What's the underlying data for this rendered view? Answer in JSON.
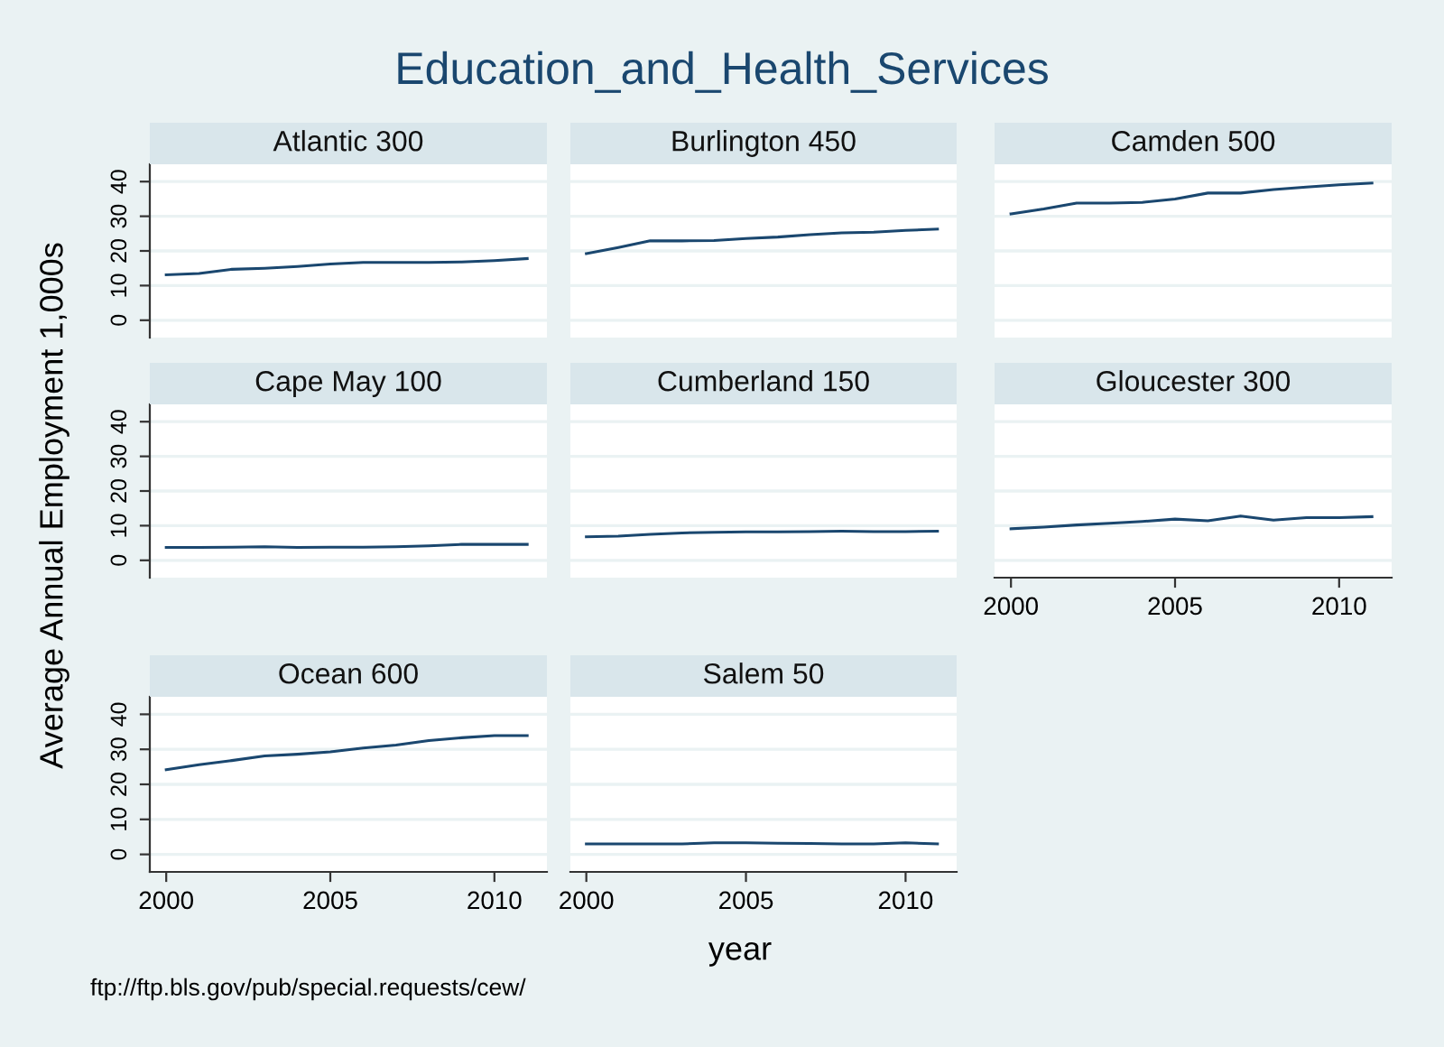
{
  "chart_data": [
    {
      "type": "line",
      "title": "Education_and_Health_Services",
      "ylabel": "Average Annual Employment 1,000s",
      "xlabel": "year",
      "annotations": [
        "ftp://ftp.bls.gov/pub/special.requests/cew/"
      ],
      "subtitle": "Atlantic 300",
      "x": [
        2000,
        2001,
        2002,
        2003,
        2004,
        2005,
        2006,
        2007,
        2008,
        2009,
        2010,
        2011
      ],
      "values": [
        13.1,
        13.5,
        14.7,
        15,
        15.5,
        16.2,
        16.7,
        16.7,
        16.7,
        16.8,
        17.2,
        17.8
      ],
      "color": "#1a476f",
      "xlim": [
        1999.5,
        2011.6
      ],
      "ylim": [
        -5,
        45
      ],
      "xticks": [
        2000,
        2005,
        2010
      ],
      "yticks": [
        0,
        10,
        20,
        30,
        40
      ],
      "grid": "y",
      "tick_labels": "y"
    },
    {
      "type": "line",
      "subtitle": "Burlington 450",
      "x": [
        2000,
        2001,
        2002,
        2003,
        2004,
        2005,
        2006,
        2007,
        2008,
        2009,
        2010,
        2011
      ],
      "values": [
        19.2,
        21,
        22.9,
        22.9,
        23,
        23.6,
        24,
        24.7,
        25.2,
        25.4,
        25.9,
        26.3
      ],
      "color": "#1a476f",
      "xlim": [
        1999.5,
        2011.6
      ],
      "ylim": [
        -5,
        45
      ],
      "xticks": [
        2000,
        2005,
        2010
      ],
      "yticks": [
        0,
        10,
        20,
        30,
        40
      ],
      "grid": "y",
      "tick_labels": false
    },
    {
      "type": "line",
      "subtitle": "Camden 500",
      "x": [
        2000,
        2001,
        2002,
        2003,
        2004,
        2005,
        2006,
        2007,
        2008,
        2009,
        2010,
        2011
      ],
      "values": [
        30.7,
        32.1,
        33.8,
        33.8,
        34,
        35,
        36.7,
        36.7,
        37.7,
        38.4,
        39.1,
        39.6
      ],
      "color": "#1a476f",
      "xlim": [
        1999.5,
        2011.6
      ],
      "ylim": [
        -5,
        45
      ],
      "xticks": [
        2000,
        2005,
        2010
      ],
      "yticks": [
        0,
        10,
        20,
        30,
        40
      ],
      "grid": "y",
      "tick_labels": false
    },
    {
      "type": "line",
      "subtitle": "Cape May 100",
      "x": [
        2000,
        2001,
        2002,
        2003,
        2004,
        2005,
        2006,
        2007,
        2008,
        2009,
        2010,
        2011
      ],
      "values": [
        3.7,
        3.7,
        3.8,
        3.9,
        3.7,
        3.8,
        3.8,
        3.9,
        4.2,
        4.6,
        4.6,
        4.6
      ],
      "color": "#1a476f",
      "xlim": [
        1999.5,
        2011.6
      ],
      "ylim": [
        -5,
        45
      ],
      "xticks": [
        2000,
        2005,
        2010
      ],
      "yticks": [
        0,
        10,
        20,
        30,
        40
      ],
      "grid": "y",
      "tick_labels": "y"
    },
    {
      "type": "line",
      "subtitle": "Cumberland 150",
      "x": [
        2000,
        2001,
        2002,
        2003,
        2004,
        2005,
        2006,
        2007,
        2008,
        2009,
        2010,
        2011
      ],
      "values": [
        6.8,
        7,
        7.5,
        7.9,
        8.1,
        8.2,
        8.2,
        8.3,
        8.4,
        8.3,
        8.3,
        8.4
      ],
      "color": "#1a476f",
      "xlim": [
        1999.5,
        2011.6
      ],
      "ylim": [
        -5,
        45
      ],
      "xticks": [
        2000,
        2005,
        2010
      ],
      "yticks": [
        0,
        10,
        20,
        30,
        40
      ],
      "grid": "y",
      "tick_labels": false
    },
    {
      "type": "line",
      "subtitle": "Gloucester 300",
      "x": [
        2000,
        2001,
        2002,
        2003,
        2004,
        2005,
        2006,
        2007,
        2008,
        2009,
        2010,
        2011
      ],
      "values": [
        9.1,
        9.6,
        10.2,
        10.7,
        11.2,
        11.9,
        11.4,
        12.8,
        11.6,
        12.3,
        12.3,
        12.6
      ],
      "color": "#1a476f",
      "xlim": [
        1999.5,
        2011.6
      ],
      "ylim": [
        -5,
        45
      ],
      "xticks": [
        2000,
        2005,
        2010
      ],
      "yticks": [
        0,
        10,
        20,
        30,
        40
      ],
      "grid": "y",
      "tick_labels": "x"
    },
    {
      "type": "line",
      "subtitle": "Ocean 600",
      "x": [
        2000,
        2001,
        2002,
        2003,
        2004,
        2005,
        2006,
        2007,
        2008,
        2009,
        2010,
        2011
      ],
      "values": [
        24.2,
        25.6,
        26.8,
        28.1,
        28.6,
        29.3,
        30.4,
        31.2,
        32.5,
        33.3,
        33.9,
        33.9
      ],
      "color": "#1a476f",
      "xlim": [
        1999.5,
        2011.6
      ],
      "ylim": [
        -5,
        45
      ],
      "xticks": [
        2000,
        2005,
        2010
      ],
      "yticks": [
        0,
        10,
        20,
        30,
        40
      ],
      "grid": "y"
    },
    {
      "type": "line",
      "subtitle": "Salem 50",
      "x": [
        2000,
        2001,
        2002,
        2003,
        2004,
        2005,
        2006,
        2007,
        2008,
        2009,
        2010,
        2011
      ],
      "values": [
        3,
        3,
        3,
        3,
        3.3,
        3.3,
        3.2,
        3.1,
        3,
        3,
        3.3,
        3
      ],
      "color": "#1a476f",
      "xlim": [
        1999.5,
        2011.6
      ],
      "ylim": [
        -5,
        45
      ],
      "xticks": [
        2000,
        2005,
        2010
      ],
      "yticks": [
        0,
        10,
        20,
        30,
        40
      ],
      "grid": "y",
      "tick_labels": "x"
    }
  ]
}
